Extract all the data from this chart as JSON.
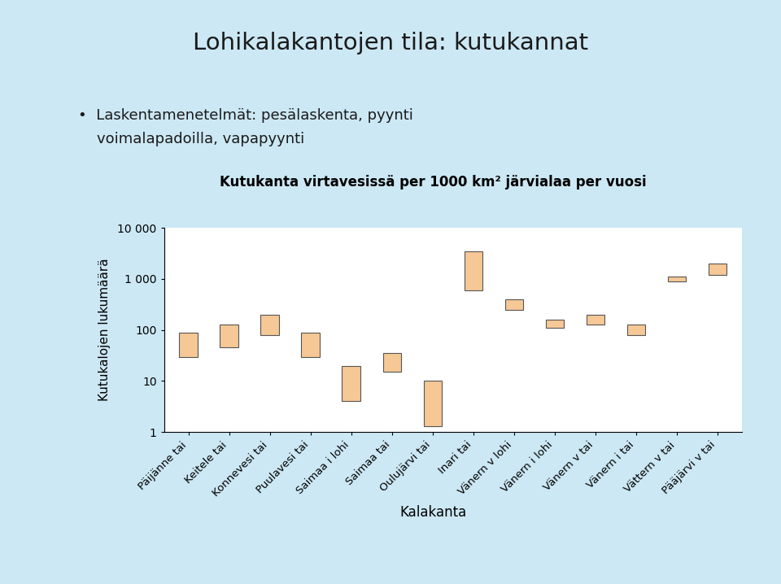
{
  "title": "Lohikalakantojen tila: kutukannat",
  "bullet_line1": "•  Laskentamenetelmät: pesälaskenta, pyynti",
  "bullet_line2": "    voimalapadoilla, vapapyynti",
  "chart_title": "Kutukanta virtavesissä per 1000 km² järvialaa per vuosi",
  "ylabel": "Kutukalojen lukumäärä",
  "xlabel": "Kalakanta",
  "background_color": "#cce8f4",
  "plot_background": "#ffffff",
  "bar_color": "#f5c896",
  "bar_edge_color": "#555555",
  "categories": [
    "Päijänne tai",
    "Keitele tai",
    "Konnevesi tai",
    "Puulavesi tai",
    "Saimaa i lohi",
    "Saimaa tai",
    "Oulujärvi tai",
    "Inari tai",
    "Vänern v lohi",
    "Vänern i lohi",
    "Vänern v tai",
    "Vänern i tai",
    "Vättern v tai",
    "Pääjärvi v tai"
  ],
  "bar_low": [
    30,
    45,
    80,
    30,
    4,
    15,
    1.3,
    600,
    250,
    110,
    130,
    80,
    900,
    1200
  ],
  "bar_high": [
    90,
    130,
    200,
    90,
    20,
    35,
    10,
    3500,
    400,
    160,
    200,
    130,
    1100,
    2000
  ],
  "ylim_low": 1,
  "ylim_high": 10000,
  "yticks": [
    1,
    10,
    100,
    1000,
    10000
  ],
  "ytick_labels": [
    "1",
    "10",
    "100",
    "1 000",
    "10 000"
  ]
}
